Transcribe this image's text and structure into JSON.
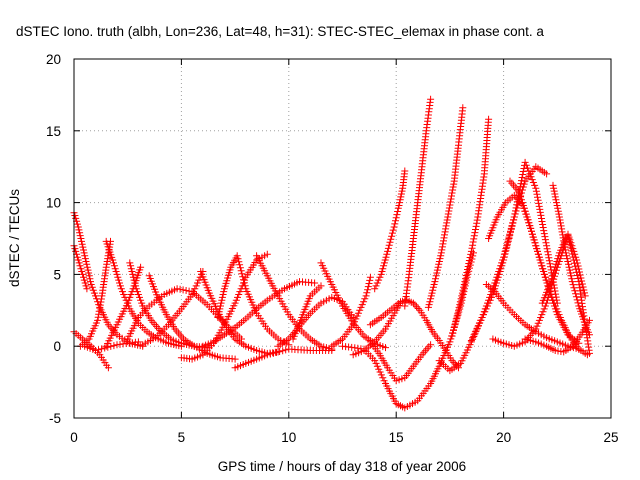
{
  "chart_data": {
    "type": "scatter",
    "title": "dSTEC Iono. truth (albh, Lon=236, Lat=48, h=31): STEC-STEC_elemax in phase cont. a",
    "xlabel": "GPS time / hours of day 318 of year 2006",
    "ylabel": "dSTEC  / TECUs",
    "xlim": [
      0,
      25
    ],
    "ylim": [
      -5,
      20
    ],
    "x_ticks": [
      "0",
      "5",
      "10",
      "15",
      "20",
      "25"
    ],
    "y_ticks": [
      "-5",
      "0",
      "5",
      "10",
      "15",
      "20"
    ],
    "grid": true,
    "marker": "+",
    "series_color": "#ff0000",
    "arcs": [
      {
        "x": [
          0.0,
          0.4,
          0.8,
          1.2,
          1.6
        ],
        "y": [
          1.0,
          0.5,
          0.0,
          -0.6,
          -1.5
        ]
      },
      {
        "x": [
          0.0,
          0.2,
          0.5,
          0.8,
          1.2,
          1.6,
          2.0,
          2.6,
          3.2
        ],
        "y": [
          9.3,
          8.3,
          6.3,
          4.3,
          2.7,
          1.5,
          0.8,
          0.2,
          0.0
        ]
      },
      {
        "x": [
          0.0,
          0.2,
          0.4,
          0.6
        ],
        "y": [
          7.0,
          6.0,
          5.0,
          4.0
        ]
      },
      {
        "x": [
          0.3,
          0.7,
          1.1,
          1.3,
          1.5,
          1.7
        ],
        "y": [
          0.0,
          0.5,
          1.8,
          3.5,
          5.5,
          7.3
        ]
      },
      {
        "x": [
          0.5,
          1.0,
          2.0,
          3.0
        ],
        "y": [
          0.0,
          -0.3,
          0.1,
          0.3
        ]
      },
      {
        "x": [
          1.5,
          1.8,
          2.2,
          2.6,
          3.0,
          3.4,
          3.8,
          4.4,
          5.0
        ],
        "y": [
          7.3,
          6.0,
          4.0,
          2.6,
          1.6,
          1.0,
          0.6,
          0.2,
          0.0
        ]
      },
      {
        "x": [
          2.6,
          2.9,
          3.2,
          3.6,
          4.0,
          4.5,
          5.0,
          5.6,
          6.2
        ],
        "y": [
          5.8,
          4.0,
          2.8,
          1.8,
          1.1,
          0.5,
          0.2,
          0.0,
          -0.1
        ]
      },
      {
        "x": [
          2.5,
          3.0,
          3.5,
          4.2,
          4.8,
          5.5,
          6.2,
          7.0,
          7.8
        ],
        "y": [
          0.5,
          2.0,
          2.8,
          3.6,
          4.0,
          3.8,
          2.9,
          1.6,
          0.5
        ]
      },
      {
        "x": [
          1.5,
          2.0,
          2.5,
          2.8,
          3.1
        ],
        "y": [
          0.0,
          1.5,
          3.0,
          4.2,
          5.5
        ]
      },
      {
        "x": [
          3.5,
          3.9,
          4.3,
          4.7,
          5.1,
          5.6,
          6.2,
          6.8,
          7.5
        ],
        "y": [
          4.9,
          3.4,
          2.2,
          1.2,
          0.5,
          0.0,
          -0.5,
          -0.8,
          -0.9
        ]
      },
      {
        "x": [
          3.2,
          3.8,
          4.4,
          5.0,
          5.5,
          6.0
        ],
        "y": [
          0.1,
          0.6,
          1.5,
          2.6,
          3.6,
          5.2
        ]
      },
      {
        "x": [
          5.0,
          5.5,
          6.0,
          6.5,
          7.0,
          7.5,
          8.0,
          8.5,
          9.0
        ],
        "y": [
          -0.8,
          -0.9,
          -0.6,
          0.2,
          1.5,
          3.0,
          4.8,
          6.0,
          6.4
        ]
      },
      {
        "x": [
          5.9,
          6.3,
          6.7,
          7.1,
          7.5,
          8.0,
          8.5,
          9.0,
          9.5
        ],
        "y": [
          5.2,
          3.7,
          2.4,
          1.3,
          0.5,
          0.0,
          -0.3,
          -0.5,
          -0.4
        ]
      },
      {
        "x": [
          6.0,
          6.5,
          7.0,
          7.5,
          8.0,
          8.5,
          9.0,
          9.8,
          10.5,
          11.2
        ],
        "y": [
          0.0,
          0.3,
          0.8,
          1.3,
          1.9,
          2.6,
          3.2,
          4.0,
          4.5,
          4.4
        ]
      },
      {
        "x": [
          6.7,
          7.0,
          7.3,
          7.6,
          8.0,
          8.5,
          9.0,
          9.5,
          10.0
        ],
        "y": [
          2.0,
          4.0,
          5.5,
          6.3,
          4.0,
          2.3,
          1.2,
          0.5,
          0.1
        ]
      },
      {
        "x": [
          7.5,
          8.0,
          9.0,
          10.0,
          11.0,
          12.0
        ],
        "y": [
          -1.5,
          -1.2,
          -0.6,
          -0.2,
          -0.3,
          -0.3
        ]
      },
      {
        "x": [
          8.5,
          9.0,
          9.5,
          10.0,
          10.5,
          11.0,
          11.5,
          12.0
        ],
        "y": [
          6.3,
          4.9,
          3.5,
          2.2,
          1.2,
          0.5,
          0.0,
          -0.2
        ]
      },
      {
        "x": [
          9.5,
          10.0,
          10.5,
          11.0,
          11.5,
          12.0,
          12.5,
          13.0
        ],
        "y": [
          0.0,
          0.5,
          1.4,
          2.3,
          3.0,
          3.4,
          3.1,
          2.0
        ]
      },
      {
        "x": [
          10.2,
          10.6,
          11.0,
          11.5
        ],
        "y": [
          0.5,
          2.0,
          3.5,
          4.2
        ]
      },
      {
        "x": [
          11.5,
          12.0,
          12.5,
          13.0,
          13.5,
          14.0,
          14.5
        ],
        "y": [
          5.8,
          4.3,
          2.8,
          1.6,
          0.7,
          0.2,
          -0.1
        ]
      },
      {
        "x": [
          12.0,
          12.5,
          13.0,
          13.3,
          13.6,
          13.8
        ],
        "y": [
          0.0,
          0.5,
          1.5,
          2.5,
          3.5,
          4.8
        ]
      },
      {
        "x": [
          13.0,
          13.5,
          14.0,
          14.5,
          15.0,
          15.2
        ],
        "y": [
          -0.6,
          -0.3,
          0.3,
          1.2,
          2.5,
          3.0
        ]
      },
      {
        "x": [
          12.5,
          13.5,
          14.0,
          14.5,
          15.0,
          15.4,
          16.0,
          16.6,
          17.0,
          17.5,
          18.0,
          18.3,
          18.6
        ],
        "y": [
          0.0,
          -0.2,
          -1.0,
          -2.6,
          -4.0,
          -4.3,
          -3.8,
          -2.6,
          -1.4,
          0.3,
          2.8,
          4.8,
          6.5
        ]
      },
      {
        "x": [
          13.8,
          14.2,
          14.6,
          15.0,
          15.4,
          15.8,
          16.2,
          16.6
        ],
        "y": [
          0.3,
          -0.5,
          -1.5,
          -2.4,
          -2.2,
          -1.4,
          -0.6,
          0.1
        ]
      },
      {
        "x": [
          13.8,
          14.3,
          14.8,
          15.2,
          15.5,
          15.8,
          16.1,
          16.4,
          16.7,
          17.0,
          17.3,
          17.6,
          17.9
        ],
        "y": [
          1.5,
          2.0,
          2.6,
          3.1,
          3.2,
          3.0,
          2.5,
          1.8,
          1.0,
          0.4,
          -0.3,
          -1.0,
          -1.5
        ]
      },
      {
        "x": [
          14.0,
          14.3,
          14.6,
          14.9,
          15.1,
          15.3,
          15.4
        ],
        "y": [
          4.0,
          5.0,
          6.6,
          8.3,
          9.6,
          11.0,
          12.2
        ]
      },
      {
        "x": [
          15.4,
          15.6,
          15.8,
          16.0,
          16.2,
          16.4,
          16.6
        ],
        "y": [
          2.8,
          5.0,
          7.5,
          10.0,
          12.5,
          15.0,
          17.2
        ]
      },
      {
        "x": [
          16.5,
          16.8,
          17.1,
          17.4,
          17.7,
          17.9,
          18.1
        ],
        "y": [
          2.7,
          4.5,
          6.5,
          9.0,
          11.5,
          14.0,
          16.6
        ]
      },
      {
        "x": [
          17.6,
          17.9,
          18.2,
          18.5,
          18.8,
          19.1,
          19.3
        ],
        "y": [
          0.7,
          2.5,
          4.5,
          6.6,
          9.0,
          12.0,
          15.8
        ]
      },
      {
        "x": [
          17.0,
          17.5,
          18.0,
          18.5,
          19.0,
          19.5,
          20.0,
          20.5,
          21.0,
          21.5,
          22.0
        ],
        "y": [
          -1.0,
          -1.7,
          -1.2,
          0.3,
          2.0,
          4.0,
          6.2,
          9.0,
          11.5,
          12.5,
          12.0
        ]
      },
      {
        "x": [
          18.5,
          19.0,
          19.5,
          20.0,
          20.5,
          21.0,
          21.5,
          22.0,
          22.5
        ],
        "y": [
          0.4,
          2.0,
          3.6,
          6.0,
          9.0,
          12.8,
          11.0,
          7.0,
          3.0
        ]
      },
      {
        "x": [
          19.3,
          19.7,
          20.1,
          20.5,
          20.9,
          21.3,
          21.7,
          22.1,
          22.5,
          23.0,
          23.5
        ],
        "y": [
          7.5,
          9.0,
          10.0,
          10.5,
          9.8,
          8.0,
          6.0,
          4.0,
          2.2,
          0.8,
          0.2
        ]
      },
      {
        "x": [
          19.2,
          19.6,
          20.0,
          20.5,
          21.0,
          21.5,
          22.0,
          22.5,
          23.0,
          23.5
        ],
        "y": [
          4.3,
          3.8,
          3.0,
          2.2,
          1.5,
          1.0,
          0.6,
          0.3,
          0.0,
          -0.2
        ]
      },
      {
        "x": [
          19.5,
          20.0,
          20.5,
          21.0,
          21.5,
          22.0,
          22.5,
          23.0,
          23.5,
          24.0
        ],
        "y": [
          0.5,
          0.2,
          0.0,
          0.3,
          1.2,
          3.0,
          5.5,
          7.7,
          4.5,
          -0.5
        ]
      },
      {
        "x": [
          20.3,
          20.7,
          21.1,
          21.5,
          21.9,
          22.3,
          22.7,
          23.1,
          23.5,
          23.9
        ],
        "y": [
          11.5,
          10.8,
          9.0,
          7.0,
          5.0,
          3.2,
          1.8,
          0.6,
          -0.2,
          -0.6
        ]
      },
      {
        "x": [
          21.0,
          21.5,
          22.0,
          22.4,
          22.8,
          23.2,
          23.6,
          24.0
        ],
        "y": [
          0.5,
          0.3,
          0.0,
          -0.3,
          -0.4,
          0.0,
          0.8,
          1.8
        ]
      },
      {
        "x": [
          22.3,
          22.6,
          22.9,
          23.2,
          23.5,
          23.8,
          24.0
        ],
        "y": [
          11.2,
          9.0,
          6.5,
          4.5,
          2.8,
          1.5,
          0.8
        ]
      },
      {
        "x": [
          21.8,
          22.2,
          22.6,
          23.0,
          23.4,
          23.8
        ],
        "y": [
          3.0,
          4.5,
          6.5,
          7.8,
          6.0,
          3.5
        ]
      }
    ]
  }
}
